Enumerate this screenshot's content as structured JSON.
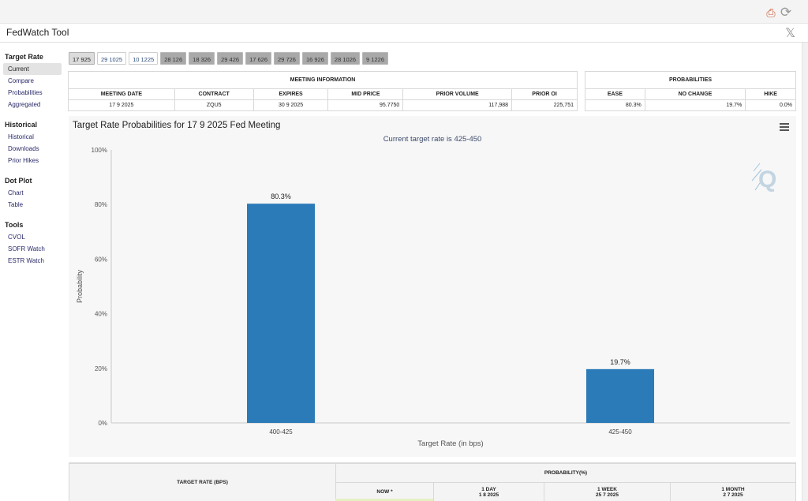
{
  "window": {
    "title": "FedWatch Tool",
    "close_icon": "x-logo-icon",
    "topbar_icons": [
      "print-icon",
      "refresh-icon"
    ]
  },
  "sidebar": {
    "sections": [
      {
        "title": "Target Rate",
        "items": [
          "Current",
          "Compare",
          "Probabilities",
          "Aggregated"
        ]
      },
      {
        "title": "Historical",
        "items": [
          "Historical",
          "Downloads",
          "Prior Hikes"
        ]
      },
      {
        "title": "Dot Plot",
        "items": [
          "Chart",
          "Table"
        ]
      },
      {
        "title": "Tools",
        "items": [
          "CVOL",
          "SOFR Watch",
          "ESTR Watch"
        ]
      }
    ],
    "active_item": "Current"
  },
  "tabs": [
    "17 925",
    "29 1025",
    "10 1225",
    "28 126",
    "18 326",
    "29 426",
    "17 626",
    "29 726",
    "16 926",
    "28 1026",
    "9 1226"
  ],
  "meeting_info": {
    "title": "MEETING INFORMATION",
    "headers": [
      "MEETING DATE",
      "CONTRACT",
      "EXPIRES",
      "MID PRICE",
      "PRIOR VOLUME",
      "PRIOR OI"
    ],
    "row": [
      "17 9 2025",
      "ZQU5",
      "30 9 2025",
      "95.7750",
      "117,988",
      "225,751"
    ]
  },
  "probabilities": {
    "title": "PROBABILITIES",
    "headers": [
      "EASE",
      "NO CHANGE",
      "HIKE"
    ],
    "row": [
      "80.3%",
      "19.7%",
      "0.0%"
    ]
  },
  "chart": {
    "title": "Target Rate Probabilities for 17 9 2025 Fed Meeting",
    "subtitle": "Current target rate is 425-450",
    "menu_icon": "hamburger-menu-icon",
    "logo_icon": "q-logo-icon"
  },
  "chart_data": {
    "type": "bar",
    "categories": [
      "400-425",
      "425-450"
    ],
    "values": [
      80.3,
      19.7
    ],
    "data_labels": [
      "80.3%",
      "19.7%"
    ],
    "xlabel": "Target Rate (in bps)",
    "ylabel": "Probability",
    "ylim": [
      0,
      100
    ],
    "yticks": [
      "0%",
      "20%",
      "40%",
      "60%",
      "80%",
      "100%"
    ],
    "bar_color": "#2b7bb9",
    "grid": false
  },
  "bottom_table": {
    "target_rate_header": "TARGET RATE (BPS)",
    "probability_header": "PROBABILITY(%)",
    "columns": [
      {
        "label": "NOW *",
        "date": ""
      },
      {
        "label": "1 DAY",
        "date": "1 8 2025"
      },
      {
        "label": "1 WEEK",
        "date": "25 7 2025"
      },
      {
        "label": "1 MONTH",
        "date": "2 7 2025"
      }
    ]
  }
}
